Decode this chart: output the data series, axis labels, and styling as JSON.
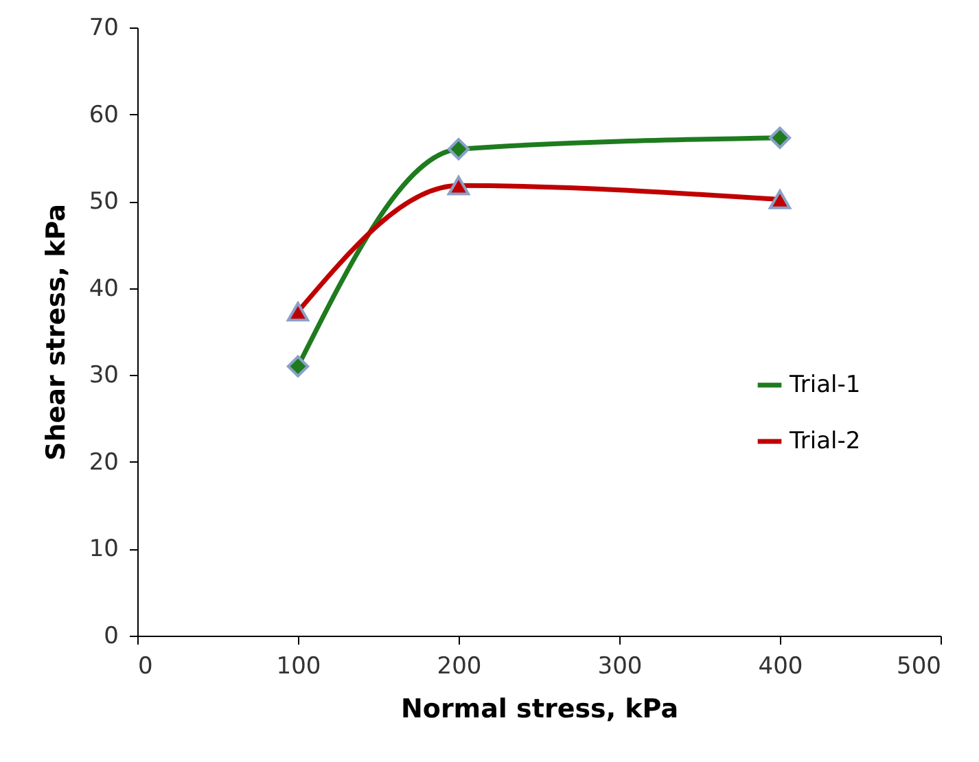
{
  "chart_data": {
    "type": "line",
    "xlabel": "Normal stress, kPa",
    "ylabel": "Shear stress, kPa",
    "x": [
      100,
      200,
      400
    ],
    "series": [
      {
        "name": "Trial-1",
        "color": "#1e7b1e",
        "marker": "diamond",
        "values": [
          31,
          56,
          57.3
        ]
      },
      {
        "name": "Trial-2",
        "color": "#c00000",
        "marker": "triangle",
        "values": [
          37.3,
          51.8,
          50.2
        ]
      }
    ],
    "xlim": [
      0,
      500
    ],
    "xticks": [
      0,
      100,
      200,
      300,
      400,
      500
    ],
    "ylim": [
      0,
      70
    ],
    "yticks": [
      0,
      10,
      20,
      30,
      40,
      50,
      60,
      70
    ],
    "grid": false,
    "legend": "right"
  }
}
